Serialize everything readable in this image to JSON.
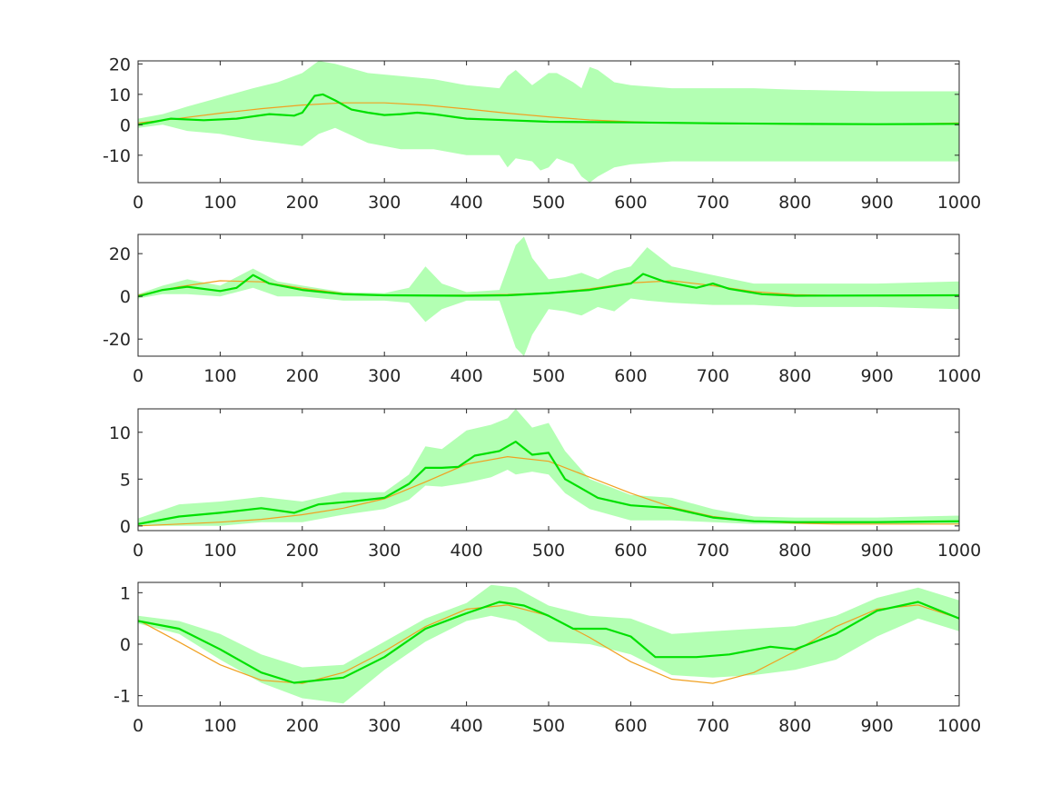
{
  "colors": {
    "band": "#b3ffb3",
    "mean_line": "#00e000",
    "true_line": "#f0a020",
    "axes": "#262626",
    "background": "#ffffff"
  },
  "chart_data": [
    {
      "type": "area",
      "xlim": [
        0,
        1000
      ],
      "ylim": [
        -19,
        21
      ],
      "xticks": [
        0,
        100,
        200,
        300,
        400,
        500,
        600,
        700,
        800,
        900,
        1000
      ],
      "xtick_labels": [
        "0",
        "100",
        "200",
        "300",
        "400",
        "500",
        "600",
        "700",
        "800",
        "900",
        "1000"
      ],
      "yticks": [
        20,
        10,
        0,
        -10
      ],
      "ytick_labels": [
        "20",
        "10",
        "0",
        "-10"
      ],
      "grid": false,
      "series": [
        {
          "kind": "band",
          "x": [
            0,
            30,
            60,
            100,
            140,
            170,
            200,
            220,
            240,
            280,
            320,
            360,
            400,
            440,
            450,
            460,
            480,
            490,
            500,
            510,
            530,
            540,
            550,
            560,
            580,
            600,
            650,
            700,
            750,
            800,
            900,
            1000
          ],
          "upper": [
            2,
            3.5,
            6,
            9,
            12,
            14,
            17,
            21,
            20,
            17,
            16,
            15,
            13,
            12,
            16,
            18,
            13,
            15,
            17,
            17,
            14,
            12,
            19,
            18,
            14,
            13,
            12,
            12,
            12,
            11.5,
            11,
            11
          ],
          "lower": [
            -1,
            0,
            -2,
            -3,
            -5,
            -6,
            -7,
            -3,
            -1,
            -6,
            -8,
            -8,
            -10,
            -10,
            -14,
            -11,
            -12,
            -15,
            -14,
            -11,
            -13,
            -17,
            -19,
            -17,
            -14,
            -13,
            -12,
            -12,
            -12,
            -12,
            -12,
            -12
          ]
        },
        {
          "kind": "mean",
          "x": [
            0,
            20,
            40,
            80,
            120,
            160,
            190,
            200,
            215,
            225,
            240,
            260,
            280,
            300,
            320,
            340,
            360,
            400,
            450,
            500,
            600,
            700,
            800,
            900,
            1000
          ],
          "y": [
            0,
            1,
            2,
            1.5,
            2,
            3.5,
            3,
            4,
            9.5,
            10,
            8,
            5,
            4,
            3.2,
            3.5,
            4,
            3.5,
            2,
            1.5,
            1,
            0.8,
            0.5,
            0.3,
            0.2,
            0.3
          ]
        },
        {
          "kind": "true",
          "x": [
            0,
            50,
            100,
            150,
            200,
            250,
            300,
            350,
            400,
            450,
            500,
            550,
            600,
            650,
            700,
            750,
            800,
            850,
            900,
            950,
            1000
          ],
          "y": [
            0.6,
            2.1,
            3.8,
            5.3,
            6.5,
            7.2,
            7.2,
            6.5,
            5.2,
            3.8,
            2.6,
            1.6,
            1.0,
            0.6,
            0.4,
            0.3,
            0.2,
            0.2,
            0.2,
            0.3,
            0.6
          ]
        }
      ]
    },
    {
      "type": "area",
      "xlim": [
        0,
        1000
      ],
      "ylim": [
        -28,
        29
      ],
      "xticks": [
        0,
        100,
        200,
        300,
        400,
        500,
        600,
        700,
        800,
        900,
        1000
      ],
      "xtick_labels": [
        "0",
        "100",
        "200",
        "300",
        "400",
        "500",
        "600",
        "700",
        "800",
        "900",
        "1000"
      ],
      "yticks": [
        20,
        0,
        -20
      ],
      "ytick_labels": [
        "20",
        "0",
        "-20"
      ],
      "grid": false,
      "series": [
        {
          "kind": "band",
          "x": [
            0,
            30,
            60,
            100,
            140,
            170,
            200,
            250,
            300,
            330,
            350,
            370,
            400,
            440,
            460,
            470,
            480,
            500,
            520,
            540,
            560,
            580,
            600,
            620,
            650,
            700,
            750,
            800,
            900,
            1000
          ],
          "upper": [
            1,
            5,
            8,
            5,
            13,
            7,
            5,
            2,
            1.5,
            4,
            14,
            6,
            2,
            3,
            24,
            28,
            18,
            8,
            9,
            11,
            8,
            12,
            14,
            23,
            14,
            10,
            6,
            6,
            6,
            7
          ],
          "lower": [
            -1,
            1,
            1,
            0,
            4,
            0,
            0,
            -2,
            -2,
            -3,
            -12,
            -6,
            -2,
            -2,
            -24,
            -28,
            -18,
            -6,
            -7,
            -9,
            -5,
            -7,
            -1,
            -2,
            -3,
            -4,
            -4,
            -5,
            -5,
            -6
          ]
        },
        {
          "kind": "mean",
          "x": [
            0,
            30,
            60,
            100,
            120,
            140,
            160,
            200,
            250,
            300,
            400,
            450,
            500,
            550,
            600,
            615,
            640,
            680,
            700,
            720,
            760,
            800,
            1000
          ],
          "y": [
            0,
            3,
            4.5,
            2.5,
            4,
            10,
            6,
            3,
            1,
            0.5,
            0.3,
            0.5,
            1.5,
            3,
            6,
            10.5,
            7,
            4,
            6,
            3.5,
            1,
            0.3,
            0.5
          ]
        },
        {
          "kind": "true",
          "x": [
            0,
            50,
            100,
            150,
            200,
            250,
            300,
            350,
            400,
            450,
            500,
            550,
            600,
            650,
            700,
            750,
            800,
            850,
            900,
            950,
            1000
          ],
          "y": [
            0.5,
            4.5,
            7.3,
            6.8,
            3.8,
            1.3,
            0.5,
            0.4,
            0.6,
            0.9,
            1.6,
            3.5,
            6.3,
            7.3,
            5,
            2.2,
            0.8,
            0.4,
            0.3,
            0.3,
            0.5
          ]
        }
      ]
    },
    {
      "type": "area",
      "xlim": [
        0,
        1000
      ],
      "ylim": [
        -0.5,
        12.5
      ],
      "xticks": [
        0,
        100,
        200,
        300,
        400,
        500,
        600,
        700,
        800,
        900,
        1000
      ],
      "xtick_labels": [
        "0",
        "100",
        "200",
        "300",
        "400",
        "500",
        "600",
        "700",
        "800",
        "900",
        "1000"
      ],
      "yticks": [
        10,
        5,
        0
      ],
      "ytick_labels": [
        "10",
        "5",
        "0"
      ],
      "grid": false,
      "series": [
        {
          "kind": "band",
          "x": [
            0,
            50,
            100,
            150,
            200,
            250,
            300,
            330,
            350,
            370,
            400,
            430,
            450,
            460,
            480,
            500,
            520,
            550,
            600,
            650,
            700,
            750,
            800,
            900,
            1000
          ],
          "upper": [
            0.8,
            2.3,
            2.6,
            3.1,
            2.6,
            3.6,
            3.6,
            5.5,
            8.5,
            8.2,
            10.2,
            10.8,
            11.5,
            12.5,
            10.5,
            11,
            8,
            5,
            3.3,
            3,
            1.8,
            1,
            0.9,
            0.9,
            1.1
          ],
          "lower": [
            0,
            0,
            0,
            0.4,
            0.4,
            1.2,
            1.8,
            2.8,
            4.3,
            4.2,
            4.6,
            5.2,
            6,
            5.5,
            5.8,
            5.5,
            3.5,
            1.8,
            0.6,
            0.6,
            0.4,
            0.2,
            0.2,
            0.2,
            0.2
          ]
        },
        {
          "kind": "mean",
          "x": [
            0,
            50,
            100,
            150,
            190,
            220,
            260,
            300,
            330,
            350,
            370,
            390,
            410,
            440,
            460,
            480,
            500,
            520,
            560,
            600,
            650,
            700,
            750,
            800,
            900,
            1000
          ],
          "y": [
            0.2,
            1,
            1.4,
            1.9,
            1.4,
            2.3,
            2.6,
            3,
            4.5,
            6.2,
            6.2,
            6.3,
            7.5,
            8,
            9,
            7.6,
            7.8,
            5,
            3,
            2.2,
            1.9,
            0.9,
            0.5,
            0.4,
            0.4,
            0.5
          ]
        },
        {
          "kind": "true",
          "x": [
            0,
            50,
            100,
            150,
            200,
            250,
            300,
            350,
            400,
            450,
            500,
            550,
            600,
            650,
            700,
            750,
            800,
            850,
            900,
            950,
            1000
          ],
          "y": [
            0,
            0.2,
            0.4,
            0.7,
            1.2,
            1.9,
            2.9,
            4.7,
            6.6,
            7.4,
            6.9,
            5.2,
            3.5,
            2,
            1,
            0.5,
            0.3,
            0.2,
            0.2,
            0.2,
            0.2
          ]
        }
      ]
    },
    {
      "type": "area",
      "xlim": [
        0,
        1000
      ],
      "ylim": [
        -1.2,
        1.2
      ],
      "xticks": [
        0,
        100,
        200,
        300,
        400,
        500,
        600,
        700,
        800,
        900,
        1000
      ],
      "xtick_labels": [
        "0",
        "100",
        "200",
        "300",
        "400",
        "500",
        "600",
        "700",
        "800",
        "900",
        "1000"
      ],
      "yticks": [
        1,
        0,
        -1
      ],
      "ytick_labels": [
        "1",
        "0",
        "-1"
      ],
      "grid": false,
      "series": [
        {
          "kind": "band",
          "x": [
            0,
            50,
            100,
            150,
            200,
            250,
            300,
            350,
            400,
            430,
            460,
            500,
            550,
            600,
            650,
            700,
            750,
            800,
            850,
            900,
            950,
            1000
          ],
          "upper": [
            0.55,
            0.45,
            0.2,
            -0.2,
            -0.45,
            -0.4,
            0.05,
            0.5,
            0.8,
            1.15,
            1.1,
            0.75,
            0.55,
            0.5,
            0.2,
            0.25,
            0.3,
            0.35,
            0.55,
            0.9,
            1.1,
            0.85
          ],
          "lower": [
            0.4,
            0.2,
            -0.3,
            -0.75,
            -1.05,
            -1.15,
            -0.5,
            0.05,
            0.45,
            0.55,
            0.45,
            0.05,
            0.0,
            -0.2,
            -0.6,
            -0.65,
            -0.6,
            -0.5,
            -0.3,
            0.15,
            0.5,
            0.25
          ]
        },
        {
          "kind": "mean",
          "x": [
            0,
            50,
            100,
            150,
            190,
            250,
            300,
            350,
            400,
            440,
            470,
            500,
            530,
            570,
            600,
            630,
            680,
            720,
            770,
            800,
            850,
            900,
            950,
            1000
          ],
          "y": [
            0.45,
            0.3,
            -0.1,
            -0.55,
            -0.75,
            -0.65,
            -0.25,
            0.3,
            0.6,
            0.82,
            0.75,
            0.55,
            0.3,
            0.3,
            0.15,
            -0.25,
            -0.25,
            -0.2,
            -0.05,
            -0.1,
            0.2,
            0.65,
            0.82,
            0.5
          ]
        },
        {
          "kind": "true",
          "x": [
            0,
            50,
            100,
            150,
            200,
            250,
            300,
            350,
            400,
            450,
            500,
            550,
            600,
            650,
            700,
            750,
            800,
            850,
            900,
            950,
            1000
          ],
          "y": [
            0.47,
            0.04,
            -0.4,
            -0.7,
            -0.76,
            -0.55,
            -0.14,
            0.34,
            0.68,
            0.76,
            0.55,
            0.13,
            -0.34,
            -0.68,
            -0.76,
            -0.55,
            -0.14,
            0.34,
            0.68,
            0.76,
            0.5
          ]
        }
      ]
    }
  ]
}
